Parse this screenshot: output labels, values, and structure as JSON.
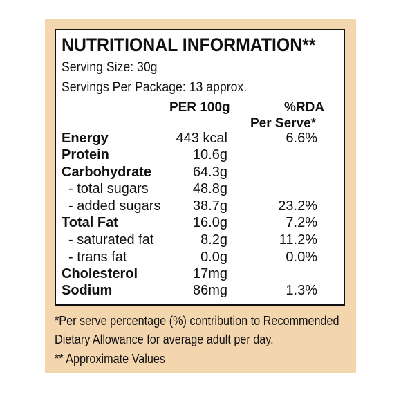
{
  "title": "NUTRITIONAL INFORMATION**",
  "serving_size": "Serving Size: 30g",
  "servings_per_package": "Servings Per Package: 13 approx.",
  "headers": {
    "per100": "PER 100g",
    "rda_line1": "%RDA",
    "rda_line2": "Per Serve*"
  },
  "rows": [
    {
      "name": "Energy",
      "per100": "443 kcal",
      "rda": "6.6%"
    },
    {
      "name": "Protein",
      "per100": "10.6g",
      "rda": ""
    },
    {
      "name": "Carbohydrate",
      "per100": "64.3g",
      "rda": ""
    },
    {
      "name": "- total sugars",
      "per100": "48.8g",
      "rda": ""
    },
    {
      "name": "- added sugars",
      "per100": "38.7g",
      "rda": "23.2%"
    },
    {
      "name": "Total Fat",
      "per100": "16.0g",
      "rda": "7.2%"
    },
    {
      "name": "- saturated fat",
      "per100": "8.2g",
      "rda": "11.2%"
    },
    {
      "name": "- trans fat",
      "per100": "0.0g",
      "rda": "0.0%"
    },
    {
      "name": "Cholesterol",
      "per100": "17mg",
      "rda": ""
    },
    {
      "name": "Sodium",
      "per100": "86mg",
      "rda": "1.3%"
    }
  ],
  "footnotes": [
    "*Per serve percentage (%) contribution to Recommended",
    "Dietary Allowance for average adult per day.",
    "** Approximate Values"
  ],
  "colors": {
    "background": "#f3d5ae",
    "panel": "#ffffff",
    "text": "#111111"
  }
}
